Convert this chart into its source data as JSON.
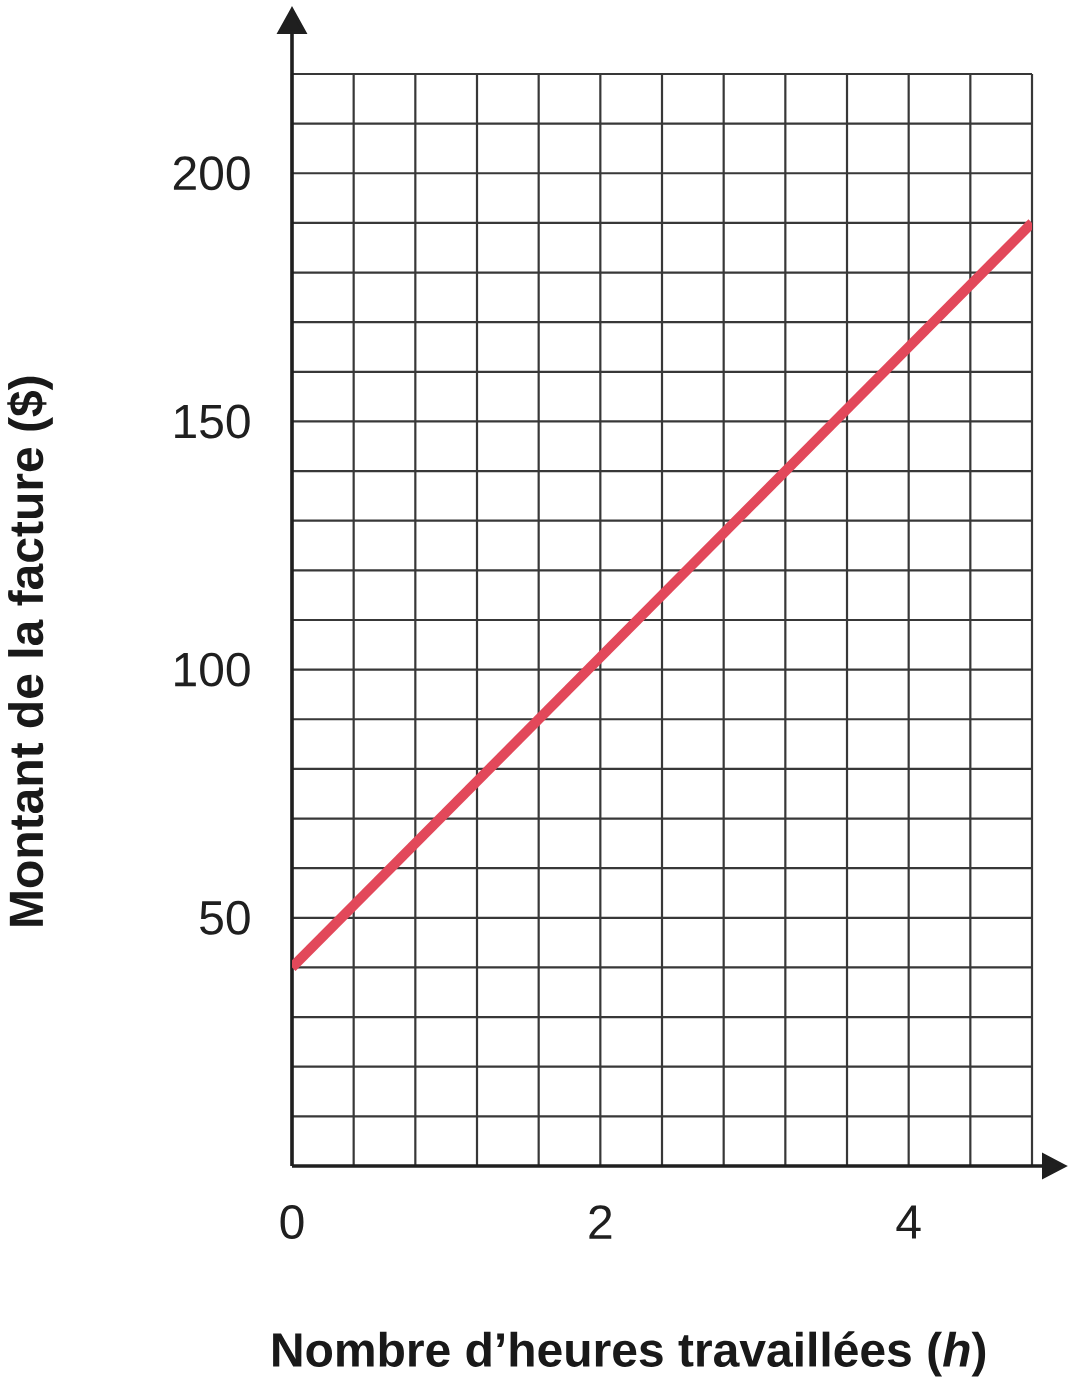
{
  "chart_data": {
    "type": "line",
    "xlabel": "Nombre d’heures travaillées (*h*)",
    "ylabel": "Montant de la facture ($)",
    "xlim": [
      0,
      4.8
    ],
    "ylim": [
      0,
      220
    ],
    "xticks": [
      0,
      {
        "value": 0.4,
        "label": null
      },
      {
        "value": 0.8,
        "label": null
      },
      {
        "value": 1.2,
        "label": null
      },
      {
        "value": 1.6,
        "label": null
      },
      2,
      {
        "value": 2.4,
        "label": null
      },
      {
        "value": 2.8,
        "label": null
      },
      {
        "value": 3.2,
        "label": null
      },
      {
        "value": 3.6,
        "label": null
      },
      4,
      {
        "value": 4.4,
        "label": null
      },
      {
        "value": 4.8,
        "label": null
      }
    ],
    "yticks": [
      {
        "value": 0,
        "label": null
      },
      {
        "value": 10,
        "label": null
      },
      {
        "value": 20,
        "label": null
      },
      {
        "value": 30,
        "label": null
      },
      {
        "value": 40,
        "label": null
      },
      50,
      {
        "value": 60,
        "label": null
      },
      {
        "value": 70,
        "label": null
      },
      {
        "value": 80,
        "label": null
      },
      {
        "value": 90,
        "label": null
      },
      100,
      {
        "value": 110,
        "label": null
      },
      {
        "value": 120,
        "label": null
      },
      {
        "value": 130,
        "label": null
      },
      {
        "value": 140,
        "label": null
      },
      150,
      {
        "value": 160,
        "label": null
      },
      {
        "value": 170,
        "label": null
      },
      {
        "value": 180,
        "label": null
      },
      {
        "value": 190,
        "label": null
      },
      200,
      {
        "value": 210,
        "label": null
      },
      {
        "value": 220,
        "label": null
      }
    ],
    "grid": true,
    "series": [
      {
        "color": "#e2485a",
        "x": [
          0,
          4.8
        ],
        "values": [
          40,
          190
        ]
      }
    ]
  }
}
